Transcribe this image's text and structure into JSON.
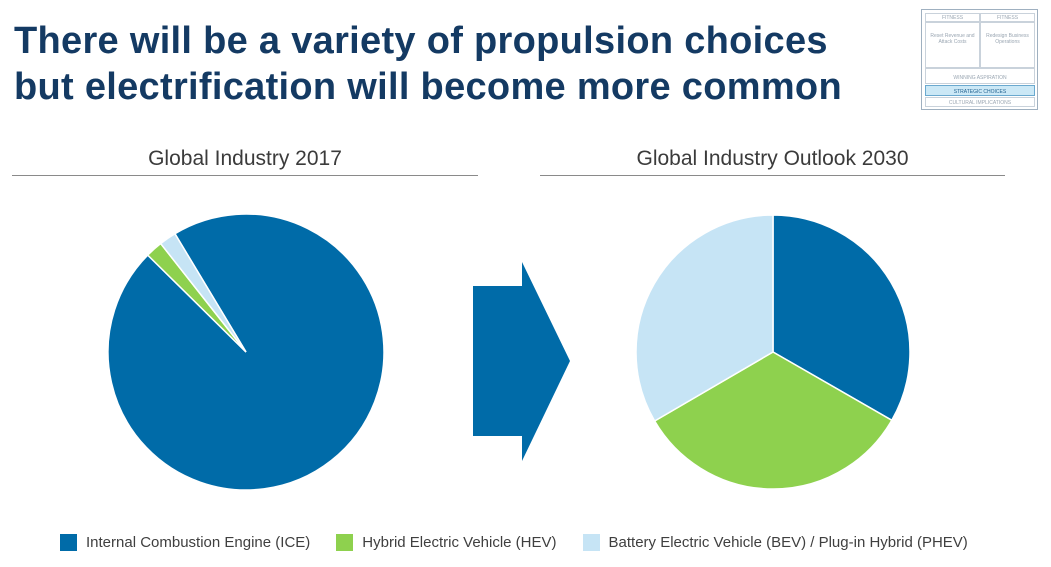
{
  "title": {
    "line1": "There will be a variety of propulsion choices",
    "line2": "but electrification will become more common"
  },
  "framework": {
    "fitness_left": "FITNESS",
    "fitness_right": "FITNESS",
    "box_left": "Reset Revenue and Attack Costs",
    "box_right": "Redesign Business Operations",
    "winning": "WINNING ASPIRATION",
    "strategic": "STRATEGIC CHOICES",
    "cultural": "CULTURAL IMPLICATIONS"
  },
  "colors": {
    "ice": "#006ba8",
    "hev": "#8ed14e",
    "bev": "#c6e4f5",
    "title": "#143a63"
  },
  "arrow_icon": "right-arrow-icon",
  "chart_data": [
    {
      "type": "pie",
      "title": "Global Industry 2017",
      "series": [
        {
          "name": "Internal Combustion Engine (ICE)",
          "value": 96
        },
        {
          "name": "Hybrid Electric Vehicle (HEV)",
          "value": 2
        },
        {
          "name": "Battery Electric Vehicle (BEV) / Plug-in Hybrid (PHEV)",
          "value": 2
        }
      ]
    },
    {
      "type": "pie",
      "title": "Global Industry Outlook 2030",
      "series": [
        {
          "name": "Internal Combustion Engine (ICE)",
          "value": 33.3
        },
        {
          "name": "Hybrid Electric Vehicle (HEV)",
          "value": 33.3
        },
        {
          "name": "Battery Electric Vehicle (BEV) / Plug-in Hybrid (PHEV)",
          "value": 33.4
        }
      ],
      "legend_position": "bottom"
    }
  ],
  "legend": [
    {
      "label": "Internal Combustion Engine (ICE)"
    },
    {
      "label": "Hybrid Electric Vehicle (HEV)"
    },
    {
      "label": "Battery Electric Vehicle (BEV) / Plug-in Hybrid (PHEV)"
    }
  ]
}
